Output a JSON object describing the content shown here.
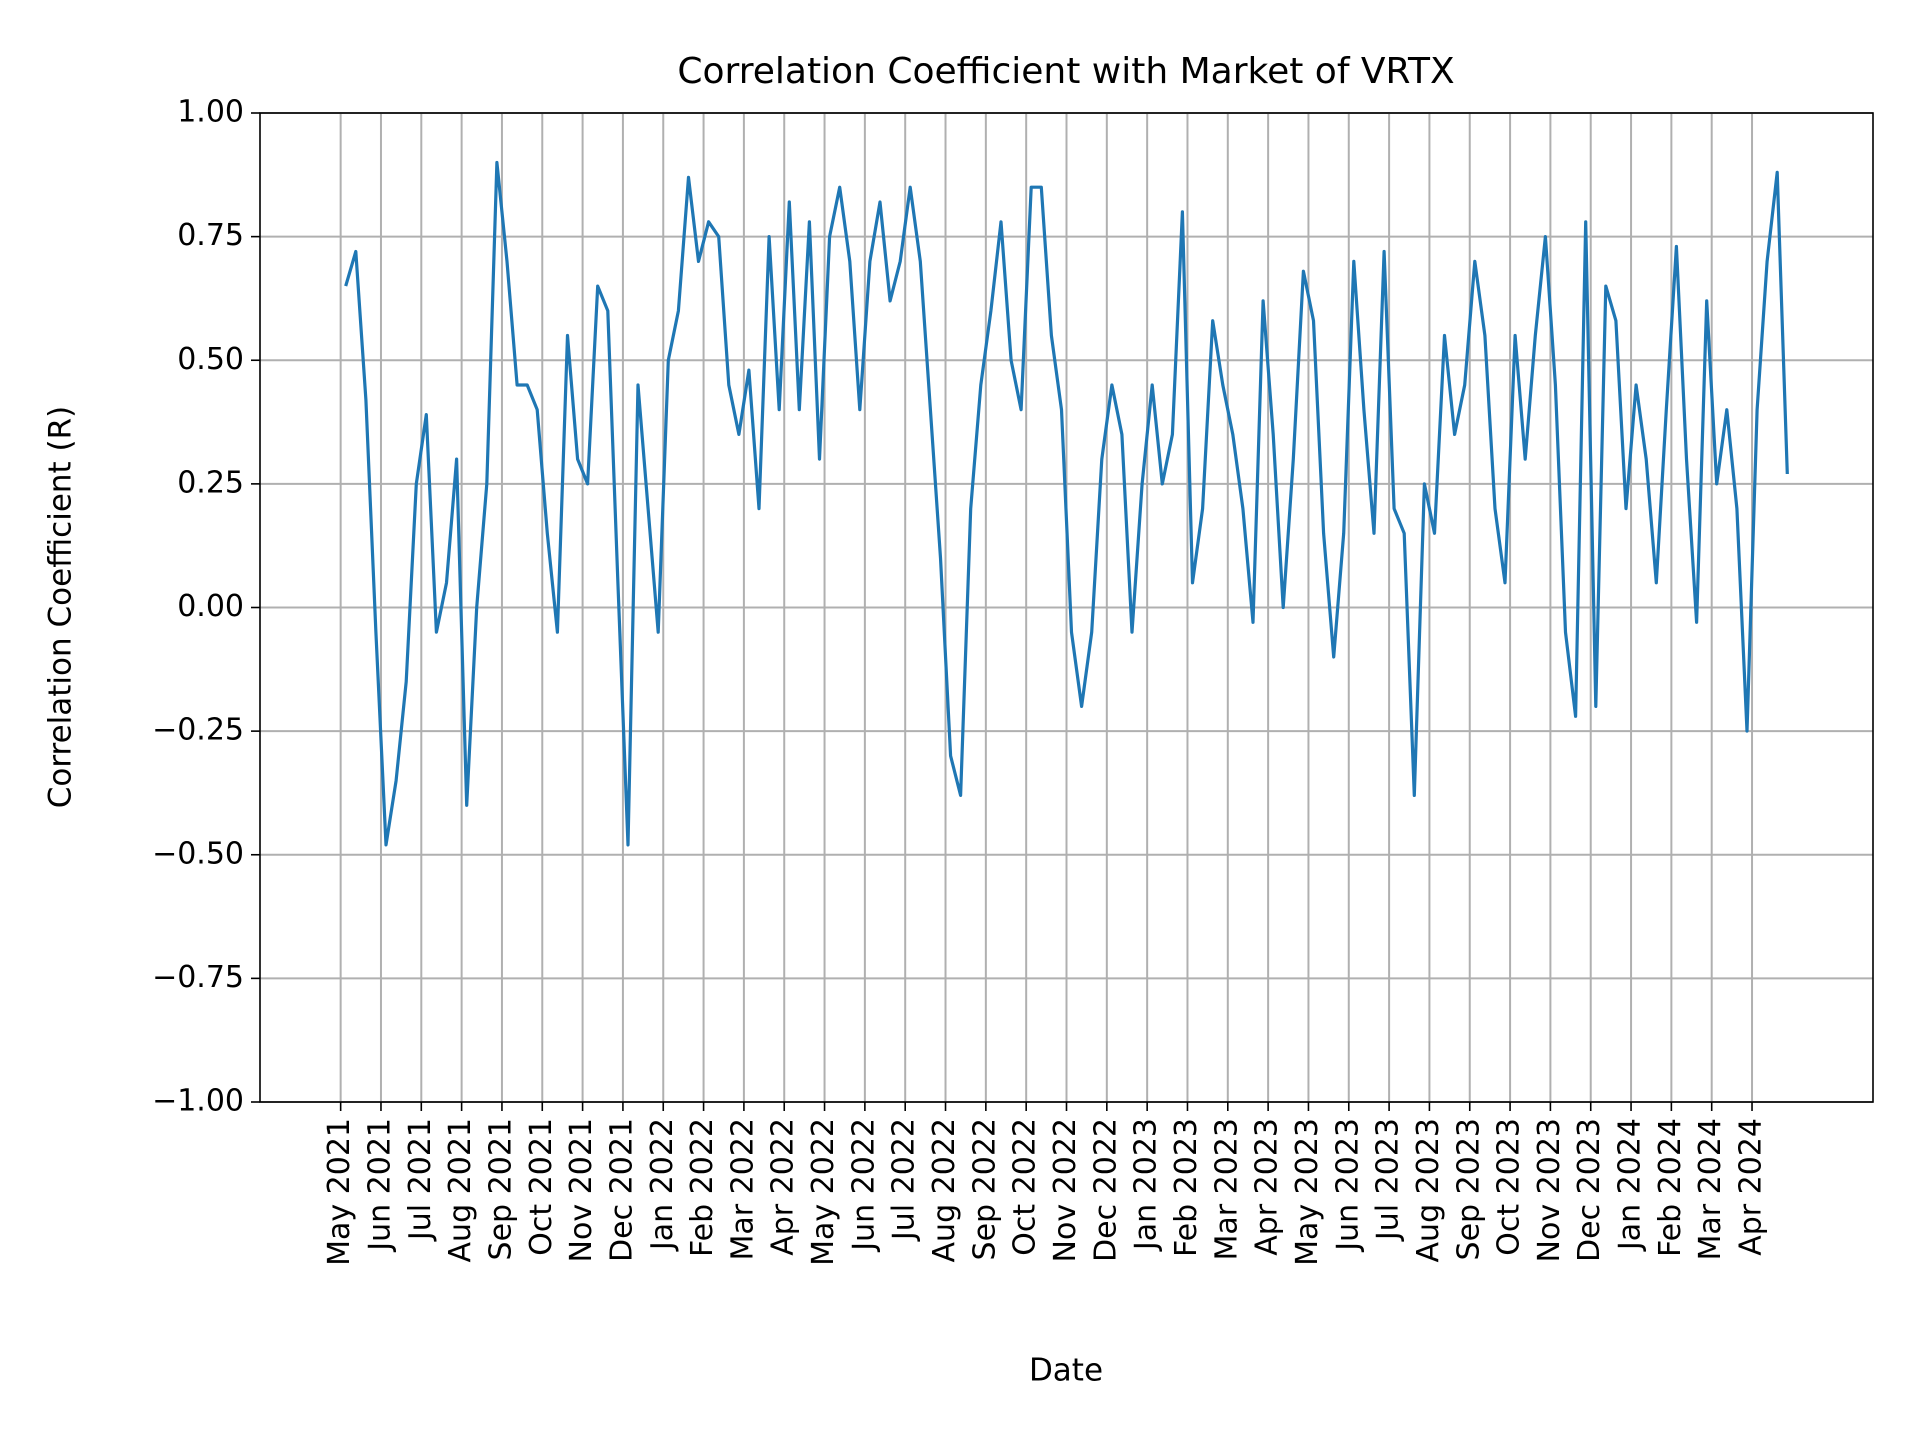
{
  "chart_data": {
    "type": "line",
    "title": "Correlation Coefficient with Market of VRTX",
    "x_label": "Date",
    "y_label": "Correlation Coefficient (R)",
    "color": "#1f77b4",
    "grid": true,
    "xlim": [
      "2021-03",
      "2024-07"
    ],
    "ylim": [
      -1,
      1
    ],
    "yticks": [
      {
        "value": -1,
        "label": "−1.00"
      },
      {
        "value": -0.75,
        "label": "−0.75"
      },
      {
        "value": -0.5,
        "label": "−0.50"
      },
      {
        "value": -0.25,
        "label": "−0.25"
      },
      {
        "value": 0,
        "label": "0.00"
      },
      {
        "value": 0.25,
        "label": "0.25"
      },
      {
        "value": 0.5,
        "label": "0.50"
      },
      {
        "value": 0.75,
        "label": "0.75"
      },
      {
        "value": 1,
        "label": "1.00"
      }
    ],
    "xticks": [
      {
        "value": "2021-05",
        "label": "May 2021"
      },
      {
        "value": "2021-06",
        "label": "Jun 2021"
      },
      {
        "value": "2021-07",
        "label": "Jul 2021"
      },
      {
        "value": "2021-08",
        "label": "Aug 2021"
      },
      {
        "value": "2021-09",
        "label": "Sep 2021"
      },
      {
        "value": "2021-10",
        "label": "Oct 2021"
      },
      {
        "value": "2021-11",
        "label": "Nov 2021"
      },
      {
        "value": "2021-12",
        "label": "Dec 2021"
      },
      {
        "value": "2022-01",
        "label": "Jan 2022"
      },
      {
        "value": "2022-02",
        "label": "Feb 2022"
      },
      {
        "value": "2022-03",
        "label": "Mar 2022"
      },
      {
        "value": "2022-04",
        "label": "Apr 2022"
      },
      {
        "value": "2022-05",
        "label": "May 2022"
      },
      {
        "value": "2022-06",
        "label": "Jun 2022"
      },
      {
        "value": "2022-07",
        "label": "Jul 2022"
      },
      {
        "value": "2022-08",
        "label": "Aug 2022"
      },
      {
        "value": "2022-09",
        "label": "Sep 2022"
      },
      {
        "value": "2022-10",
        "label": "Oct 2022"
      },
      {
        "value": "2022-11",
        "label": "Nov 2022"
      },
      {
        "value": "2022-12",
        "label": "Dec 2022"
      },
      {
        "value": "2023-01",
        "label": "Jan 2023"
      },
      {
        "value": "2023-02",
        "label": "Feb 2023"
      },
      {
        "value": "2023-03",
        "label": "Mar 2023"
      },
      {
        "value": "2023-04",
        "label": "Apr 2023"
      },
      {
        "value": "2023-05",
        "label": "May 2023"
      },
      {
        "value": "2023-06",
        "label": "Jun 2023"
      },
      {
        "value": "2023-07",
        "label": "Jul 2023"
      },
      {
        "value": "2023-08",
        "label": "Aug 2023"
      },
      {
        "value": "2023-09",
        "label": "Sep 2023"
      },
      {
        "value": "2023-10",
        "label": "Oct 2023"
      },
      {
        "value": "2023-11",
        "label": "Nov 2023"
      },
      {
        "value": "2023-12",
        "label": "Dec 2023"
      },
      {
        "value": "2024-01",
        "label": "Jan 2024"
      },
      {
        "value": "2024-02",
        "label": "Feb 2024"
      },
      {
        "value": "2024-03",
        "label": "Mar 2024"
      },
      {
        "value": "2024-04",
        "label": "Apr 2024"
      }
    ],
    "x": [
      "2021-05",
      "2021-05",
      "2021-05",
      "2021-05",
      "2021-06",
      "2021-06",
      "2021-06",
      "2021-06",
      "2021-07",
      "2021-07",
      "2021-07",
      "2021-07",
      "2021-08",
      "2021-08",
      "2021-08",
      "2021-08",
      "2021-09",
      "2021-09",
      "2021-09",
      "2021-09",
      "2021-10",
      "2021-10",
      "2021-10",
      "2021-10",
      "2021-11",
      "2021-11",
      "2021-11",
      "2021-11",
      "2021-12",
      "2021-12",
      "2021-12",
      "2021-12",
      "2022-01",
      "2022-01",
      "2022-01",
      "2022-01",
      "2022-02",
      "2022-02",
      "2022-02",
      "2022-02",
      "2022-03",
      "2022-03",
      "2022-03",
      "2022-03",
      "2022-04",
      "2022-04",
      "2022-04",
      "2022-04",
      "2022-05",
      "2022-05",
      "2022-05",
      "2022-05",
      "2022-06",
      "2022-06",
      "2022-06",
      "2022-06",
      "2022-07",
      "2022-07",
      "2022-07",
      "2022-07",
      "2022-08",
      "2022-08",
      "2022-08",
      "2022-08",
      "2022-09",
      "2022-09",
      "2022-09",
      "2022-09",
      "2022-10",
      "2022-10",
      "2022-10",
      "2022-10",
      "2022-11",
      "2022-11",
      "2022-11",
      "2022-11",
      "2022-12",
      "2022-12",
      "2022-12",
      "2022-12",
      "2023-01",
      "2023-01",
      "2023-01",
      "2023-01",
      "2023-02",
      "2023-02",
      "2023-02",
      "2023-02",
      "2023-03",
      "2023-03",
      "2023-03",
      "2023-03",
      "2023-04",
      "2023-04",
      "2023-04",
      "2023-04",
      "2023-05",
      "2023-05",
      "2023-05",
      "2023-05",
      "2023-06",
      "2023-06",
      "2023-06",
      "2023-06",
      "2023-07",
      "2023-07",
      "2023-07",
      "2023-07",
      "2023-08",
      "2023-08",
      "2023-08",
      "2023-08",
      "2023-09",
      "2023-09",
      "2023-09",
      "2023-09",
      "2023-10",
      "2023-10",
      "2023-10",
      "2023-10",
      "2023-11",
      "2023-11",
      "2023-11",
      "2023-11",
      "2023-12",
      "2023-12",
      "2023-12",
      "2023-12",
      "2024-01",
      "2024-01",
      "2024-01",
      "2024-01",
      "2024-02",
      "2024-02",
      "2024-02",
      "2024-02",
      "2024-03",
      "2024-03",
      "2024-03",
      "2024-03",
      "2024-04",
      "2024-04",
      "2024-04",
      "2024-04"
    ],
    "values": [
      0.65,
      0.72,
      0.42,
      -0.05,
      -0.48,
      -0.35,
      -0.15,
      0.25,
      0.39,
      -0.05,
      0.05,
      0.3,
      -0.4,
      0.0,
      0.25,
      0.9,
      0.7,
      0.45,
      0.45,
      0.4,
      0.15,
      -0.05,
      0.55,
      0.3,
      0.25,
      0.65,
      0.6,
      0.05,
      -0.48,
      0.45,
      0.2,
      -0.05,
      0.5,
      0.6,
      0.87,
      0.7,
      0.78,
      0.75,
      0.45,
      0.35,
      0.48,
      0.2,
      0.75,
      0.4,
      0.82,
      0.4,
      0.78,
      0.3,
      0.75,
      0.85,
      0.7,
      0.4,
      0.7,
      0.82,
      0.62,
      0.7,
      0.85,
      0.7,
      0.4,
      0.1,
      -0.3,
      -0.38,
      0.2,
      0.45,
      0.6,
      0.78,
      0.5,
      0.4,
      0.85,
      0.85,
      0.55,
      0.4,
      -0.05,
      -0.2,
      -0.05,
      0.3,
      0.45,
      0.35,
      -0.05,
      0.25,
      0.45,
      0.25,
      0.35,
      0.8,
      0.05,
      0.2,
      0.58,
      0.45,
      0.35,
      0.2,
      -0.03,
      0.62,
      0.35,
      0.0,
      0.3,
      0.68,
      0.58,
      0.15,
      -0.1,
      0.15,
      0.7,
      0.4,
      0.15,
      0.72,
      0.2,
      0.15,
      -0.38,
      0.25,
      0.15,
      0.55,
      0.35,
      0.45,
      0.7,
      0.55,
      0.2,
      0.05,
      0.55,
      0.3,
      0.55,
      0.75,
      0.45,
      -0.05,
      -0.22,
      0.78,
      -0.2,
      0.65,
      0.58,
      0.2,
      0.45,
      0.3,
      0.05,
      0.4,
      0.73,
      0.3,
      -0.03,
      0.62,
      0.25,
      0.4,
      0.2,
      -0.25,
      0.4,
      0.7,
      0.88,
      0.27
    ]
  }
}
